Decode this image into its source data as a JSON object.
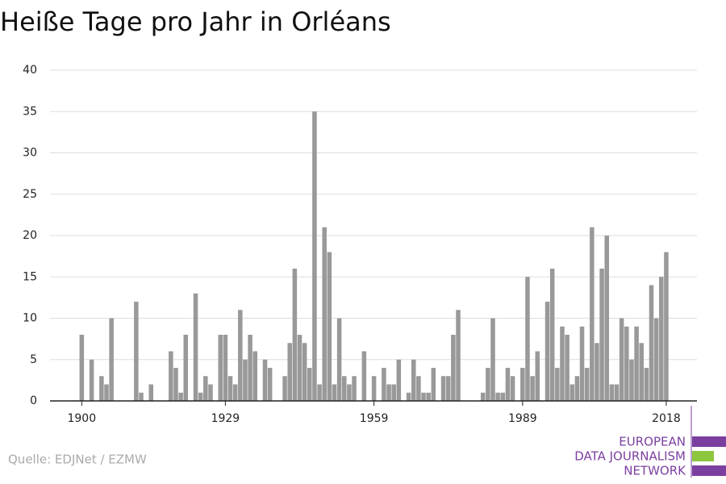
{
  "chart_data": {
    "type": "bar",
    "title": "Heiße Tage pro Jahr in Orléans",
    "source": "Quelle: EDJNet / EZMW",
    "logo": [
      "EUROPEAN",
      "DATA JOURNALISM",
      "NETWORK"
    ],
    "x": [
      1900,
      1901,
      1902,
      1903,
      1904,
      1905,
      1906,
      1907,
      1908,
      1909,
      1910,
      1911,
      1912,
      1913,
      1914,
      1915,
      1916,
      1917,
      1918,
      1919,
      1920,
      1921,
      1922,
      1923,
      1924,
      1925,
      1926,
      1927,
      1928,
      1929,
      1930,
      1931,
      1932,
      1933,
      1934,
      1935,
      1936,
      1937,
      1938,
      1939,
      1940,
      1941,
      1942,
      1943,
      1944,
      1945,
      1946,
      1947,
      1948,
      1949,
      1950,
      1951,
      1952,
      1953,
      1954,
      1955,
      1956,
      1957,
      1958,
      1959,
      1960,
      1961,
      1962,
      1963,
      1964,
      1965,
      1966,
      1967,
      1968,
      1969,
      1970,
      1971,
      1972,
      1973,
      1974,
      1975,
      1976,
      1977,
      1978,
      1979,
      1980,
      1981,
      1982,
      1983,
      1984,
      1985,
      1986,
      1987,
      1988,
      1989,
      1990,
      1991,
      1992,
      1993,
      1994,
      1995,
      1996,
      1997,
      1998,
      1999,
      2000,
      2001,
      2002,
      2003,
      2004,
      2005,
      2006,
      2007,
      2008,
      2009,
      2010,
      2011,
      2012,
      2013,
      2014,
      2015,
      2016,
      2017,
      2018
    ],
    "values": [
      8,
      0,
      5,
      0,
      3,
      2,
      10,
      0,
      0,
      0,
      0,
      12,
      1,
      0,
      2,
      0,
      0,
      0,
      6,
      4,
      1,
      8,
      0,
      13,
      1,
      3,
      2,
      0,
      8,
      8,
      3,
      2,
      11,
      5,
      8,
      6,
      0,
      5,
      4,
      0,
      0,
      3,
      7,
      16,
      8,
      7,
      4,
      35,
      2,
      21,
      18,
      2,
      10,
      3,
      2,
      3,
      0,
      6,
      0,
      3,
      0,
      4,
      2,
      2,
      5,
      0,
      1,
      5,
      3,
      1,
      1,
      4,
      0,
      3,
      3,
      8,
      11,
      0,
      0,
      0,
      0,
      1,
      4,
      10,
      1,
      1,
      4,
      3,
      0,
      4,
      15,
      3,
      6,
      0,
      12,
      16,
      4,
      9,
      8,
      2,
      3,
      9,
      4,
      21,
      7,
      16,
      20,
      2,
      2,
      10,
      9,
      5,
      9,
      7,
      4,
      14,
      10,
      15,
      18
    ],
    "color": "#999999",
    "xlim": [
      1893.6,
      2024.2
    ],
    "xticks": [
      1900,
      1929,
      1959,
      1989,
      2018
    ],
    "ylim": [
      0,
      40
    ],
    "yticks": [
      0,
      5,
      10,
      15,
      20,
      25,
      30,
      35,
      40
    ],
    "grid": true
  }
}
